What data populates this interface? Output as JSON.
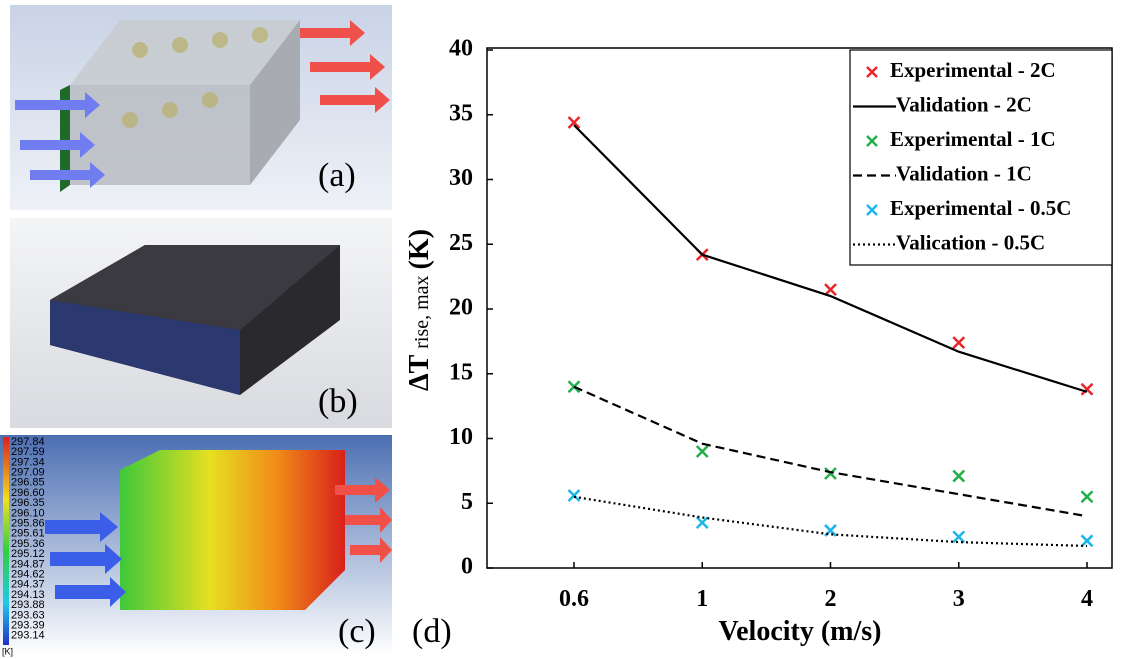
{
  "panels": {
    "a": "(a)",
    "b": "(b)",
    "c": "(c)",
    "d": "(d)",
    "colorbar_labels": [
      "297.84",
      "297.59",
      "297.34",
      "297.09",
      "296.85",
      "296.60",
      "296.35",
      "296.10",
      "295.86",
      "295.61",
      "295.36",
      "295.12",
      "294.87",
      "294.62",
      "294.37",
      "294.13",
      "293.88",
      "293.63",
      "293.39",
      "293.14"
    ],
    "colorbar_unit": "[K]"
  },
  "chart_data": {
    "type": "line",
    "x_label": "Velocity (m/s)",
    "y_label": "ΔT",
    "y_label_sub": "rise, max",
    "y_label_unit": "(K)",
    "categories": [
      "0.6",
      "1",
      "2",
      "3",
      "4"
    ],
    "ylim": [
      0,
      40
    ],
    "yticks": [
      0,
      5,
      10,
      15,
      20,
      25,
      30,
      35,
      40
    ],
    "legend": "upper right",
    "series": [
      {
        "name": "Experimental - 2C",
        "color": "#e8262a",
        "style": "marker",
        "values": [
          34.4,
          24.2,
          21.5,
          17.4,
          13.8
        ]
      },
      {
        "name": "Validation - 2C",
        "color": "#000000",
        "style": "solid",
        "values": [
          34.2,
          24.2,
          21.0,
          16.7,
          13.6
        ]
      },
      {
        "name": "Experimental - 1C",
        "color": "#22b04b",
        "style": "marker",
        "values": [
          14.0,
          9.0,
          7.3,
          7.1,
          5.5
        ]
      },
      {
        "name": "Validation - 1C",
        "color": "#000000",
        "style": "dashed",
        "values": [
          14.0,
          9.6,
          7.4,
          5.7,
          4.0
        ]
      },
      {
        "name": "Experimental - 0.5C",
        "color": "#1ab6e8",
        "style": "marker",
        "values": [
          5.6,
          3.5,
          2.9,
          2.4,
          2.1
        ]
      },
      {
        "name": "Valication - 0.5C",
        "color": "#000000",
        "style": "dotted",
        "values": [
          5.5,
          3.9,
          2.6,
          2.0,
          1.7
        ]
      }
    ]
  }
}
